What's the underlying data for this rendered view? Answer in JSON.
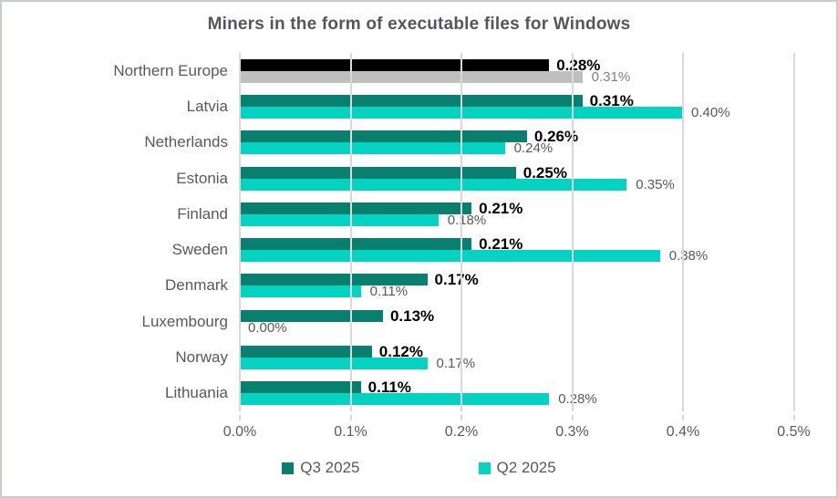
{
  "title": "Miners in the form of executable files for Windows",
  "colors": {
    "q3_series": "#087f6f",
    "q2_series": "#05d3c1",
    "q3_northern_europe": "#000000",
    "q2_northern_europe": "#bfbfbf",
    "gridline": "#d9d9d9",
    "text_gray": "#595959"
  },
  "legend": [
    {
      "label": "Q3 2025",
      "color": "#087f6f"
    },
    {
      "label": "Q2 2025",
      "color": "#05d3c1"
    }
  ],
  "chart_data": {
    "type": "bar",
    "orientation": "horizontal",
    "title": "Miners in the form of executable files for Windows",
    "categories": [
      "Northern Europe",
      "Latvia",
      "Netherlands",
      "Estonia",
      "Finland",
      "Sweden",
      "Denmark",
      "Luxembourg",
      "Norway",
      "Lithuania"
    ],
    "series": [
      {
        "name": "Q3 2025",
        "color": "#087f6f",
        "point_colors": [
          "#000000",
          null,
          null,
          null,
          null,
          null,
          null,
          null,
          null,
          null
        ],
        "values": [
          0.28,
          0.31,
          0.26,
          0.25,
          0.21,
          0.21,
          0.17,
          0.13,
          0.12,
          0.11
        ],
        "data_labels": [
          "0.28%",
          "0.31%",
          "0.26%",
          "0.25%",
          "0.21%",
          "0.21%",
          "0.17%",
          "0.13%",
          "0.12%",
          "0.11%"
        ]
      },
      {
        "name": "Q2 2025",
        "color": "#05d3c1",
        "point_colors": [
          "#bfbfbf",
          null,
          null,
          null,
          null,
          null,
          null,
          null,
          null,
          null
        ],
        "values": [
          0.31,
          0.4,
          0.24,
          0.35,
          0.18,
          0.38,
          0.11,
          0.0,
          0.17,
          0.28
        ],
        "data_labels": [
          "0.31%",
          "0.40%",
          "0.24%",
          "0.35%",
          "0.18%",
          "0.38%",
          "0.11%",
          "0.00%",
          "0.17%",
          "0.28%"
        ]
      }
    ],
    "x_ticks": [
      "0.0%",
      "0.1%",
      "0.2%",
      "0.3%",
      "0.4%",
      "0.5%"
    ],
    "x_tick_values": [
      0.0,
      0.1,
      0.2,
      0.3,
      0.4,
      0.5
    ],
    "xlim": [
      0,
      0.52
    ],
    "grid": true,
    "legend_position": "bottom"
  }
}
